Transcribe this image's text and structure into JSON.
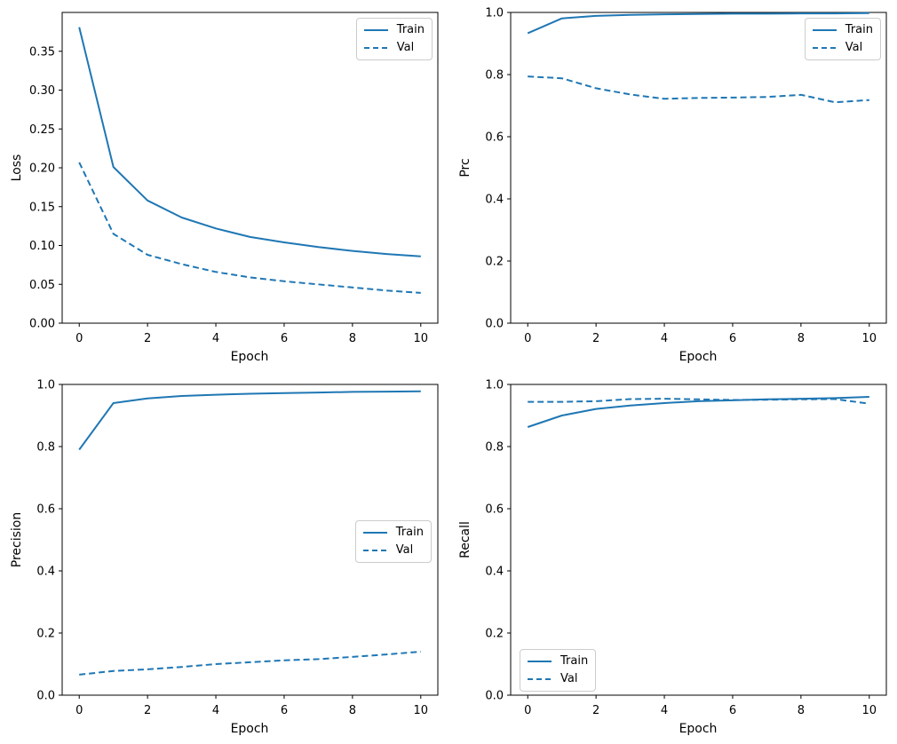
{
  "figure": {
    "background": "#ffffff",
    "line_color": "#1f77b4",
    "spine_color": "#000000",
    "text_color": "#000000"
  },
  "chart_data": [
    {
      "type": "line",
      "title": "",
      "xlabel": "Epoch",
      "ylabel": "Loss",
      "x": [
        0,
        1,
        2,
        3,
        4,
        5,
        6,
        7,
        8,
        9,
        10
      ],
      "series": [
        {
          "name": "Train",
          "line_style": "solid",
          "values": [
            0.381,
            0.201,
            0.158,
            0.136,
            0.122,
            0.111,
            0.104,
            0.098,
            0.093,
            0.089,
            0.086
          ]
        },
        {
          "name": "Val",
          "line_style": "dashed",
          "values": [
            0.207,
            0.115,
            0.088,
            0.076,
            0.066,
            0.059,
            0.054,
            0.05,
            0.046,
            0.042,
            0.039
          ]
        }
      ],
      "xlim": [
        -0.5,
        10.5
      ],
      "ylim": [
        0,
        0.4
      ],
      "xticks": {
        "values": [
          0,
          2,
          4,
          6,
          8,
          10
        ],
        "labels": [
          "0",
          "2",
          "4",
          "6",
          "8",
          "10"
        ]
      },
      "yticks": {
        "values": [
          0,
          0.05,
          0.1,
          0.15,
          0.2,
          0.25,
          0.3,
          0.35
        ],
        "labels": [
          "0.00",
          "0.05",
          "0.10",
          "0.15",
          "0.20",
          "0.25",
          "0.30",
          "0.35"
        ]
      },
      "grid": false,
      "legend_loc": "upper right"
    },
    {
      "type": "line",
      "title": "",
      "xlabel": "Epoch",
      "ylabel": "Prc",
      "x": [
        0,
        1,
        2,
        3,
        4,
        5,
        6,
        7,
        8,
        9,
        10
      ],
      "series": [
        {
          "name": "Train",
          "line_style": "solid",
          "values": [
            0.933,
            0.981,
            0.989,
            0.992,
            0.994,
            0.995,
            0.996,
            0.996,
            0.997,
            0.997,
            0.998
          ]
        },
        {
          "name": "Val",
          "line_style": "dashed",
          "values": [
            0.794,
            0.788,
            0.756,
            0.736,
            0.722,
            0.725,
            0.726,
            0.728,
            0.735,
            0.711,
            0.718
          ]
        }
      ],
      "xlim": [
        -0.5,
        10.5
      ],
      "ylim": [
        0,
        1.0
      ],
      "xticks": {
        "values": [
          0,
          2,
          4,
          6,
          8,
          10
        ],
        "labels": [
          "0",
          "2",
          "4",
          "6",
          "8",
          "10"
        ]
      },
      "yticks": {
        "values": [
          0,
          0.2,
          0.4,
          0.6,
          0.8,
          1.0
        ],
        "labels": [
          "0.0",
          "0.2",
          "0.4",
          "0.6",
          "0.8",
          "1.0"
        ]
      },
      "grid": false,
      "legend_loc": "upper right"
    },
    {
      "type": "line",
      "title": "",
      "xlabel": "Epoch",
      "ylabel": "Precision",
      "x": [
        0,
        1,
        2,
        3,
        4,
        5,
        6,
        7,
        8,
        9,
        10
      ],
      "series": [
        {
          "name": "Train",
          "line_style": "solid",
          "values": [
            0.79,
            0.94,
            0.955,
            0.963,
            0.967,
            0.97,
            0.972,
            0.974,
            0.976,
            0.977,
            0.978
          ]
        },
        {
          "name": "Val",
          "line_style": "dashed",
          "values": [
            0.066,
            0.078,
            0.083,
            0.091,
            0.1,
            0.106,
            0.112,
            0.116,
            0.123,
            0.131,
            0.14
          ]
        }
      ],
      "xlim": [
        -0.5,
        10.5
      ],
      "ylim": [
        0,
        1.0
      ],
      "xticks": {
        "values": [
          0,
          2,
          4,
          6,
          8,
          10
        ],
        "labels": [
          "0",
          "2",
          "4",
          "6",
          "8",
          "10"
        ]
      },
      "yticks": {
        "values": [
          0,
          0.2,
          0.4,
          0.6,
          0.8,
          1.0
        ],
        "labels": [
          "0.0",
          "0.2",
          "0.4",
          "0.6",
          "0.8",
          "1.0"
        ]
      },
      "grid": false,
      "legend_loc": "center right"
    },
    {
      "type": "line",
      "title": "",
      "xlabel": "Epoch",
      "ylabel": "Recall",
      "x": [
        0,
        1,
        2,
        3,
        4,
        5,
        6,
        7,
        8,
        9,
        10
      ],
      "series": [
        {
          "name": "Train",
          "line_style": "solid",
          "values": [
            0.863,
            0.9,
            0.921,
            0.932,
            0.94,
            0.946,
            0.949,
            0.952,
            0.954,
            0.956,
            0.96
          ]
        },
        {
          "name": "Val",
          "line_style": "dashed",
          "values": [
            0.944,
            0.944,
            0.946,
            0.953,
            0.954,
            0.952,
            0.95,
            0.951,
            0.952,
            0.953,
            0.938
          ]
        }
      ],
      "xlim": [
        -0.5,
        10.5
      ],
      "ylim": [
        0,
        1.0
      ],
      "xticks": {
        "values": [
          0,
          2,
          4,
          6,
          8,
          10
        ],
        "labels": [
          "0",
          "2",
          "4",
          "6",
          "8",
          "10"
        ]
      },
      "yticks": {
        "values": [
          0,
          0.2,
          0.4,
          0.6,
          0.8,
          1.0
        ],
        "labels": [
          "0.0",
          "0.2",
          "0.4",
          "0.6",
          "0.8",
          "1.0"
        ]
      },
      "grid": false,
      "legend_loc": "lower left"
    }
  ]
}
